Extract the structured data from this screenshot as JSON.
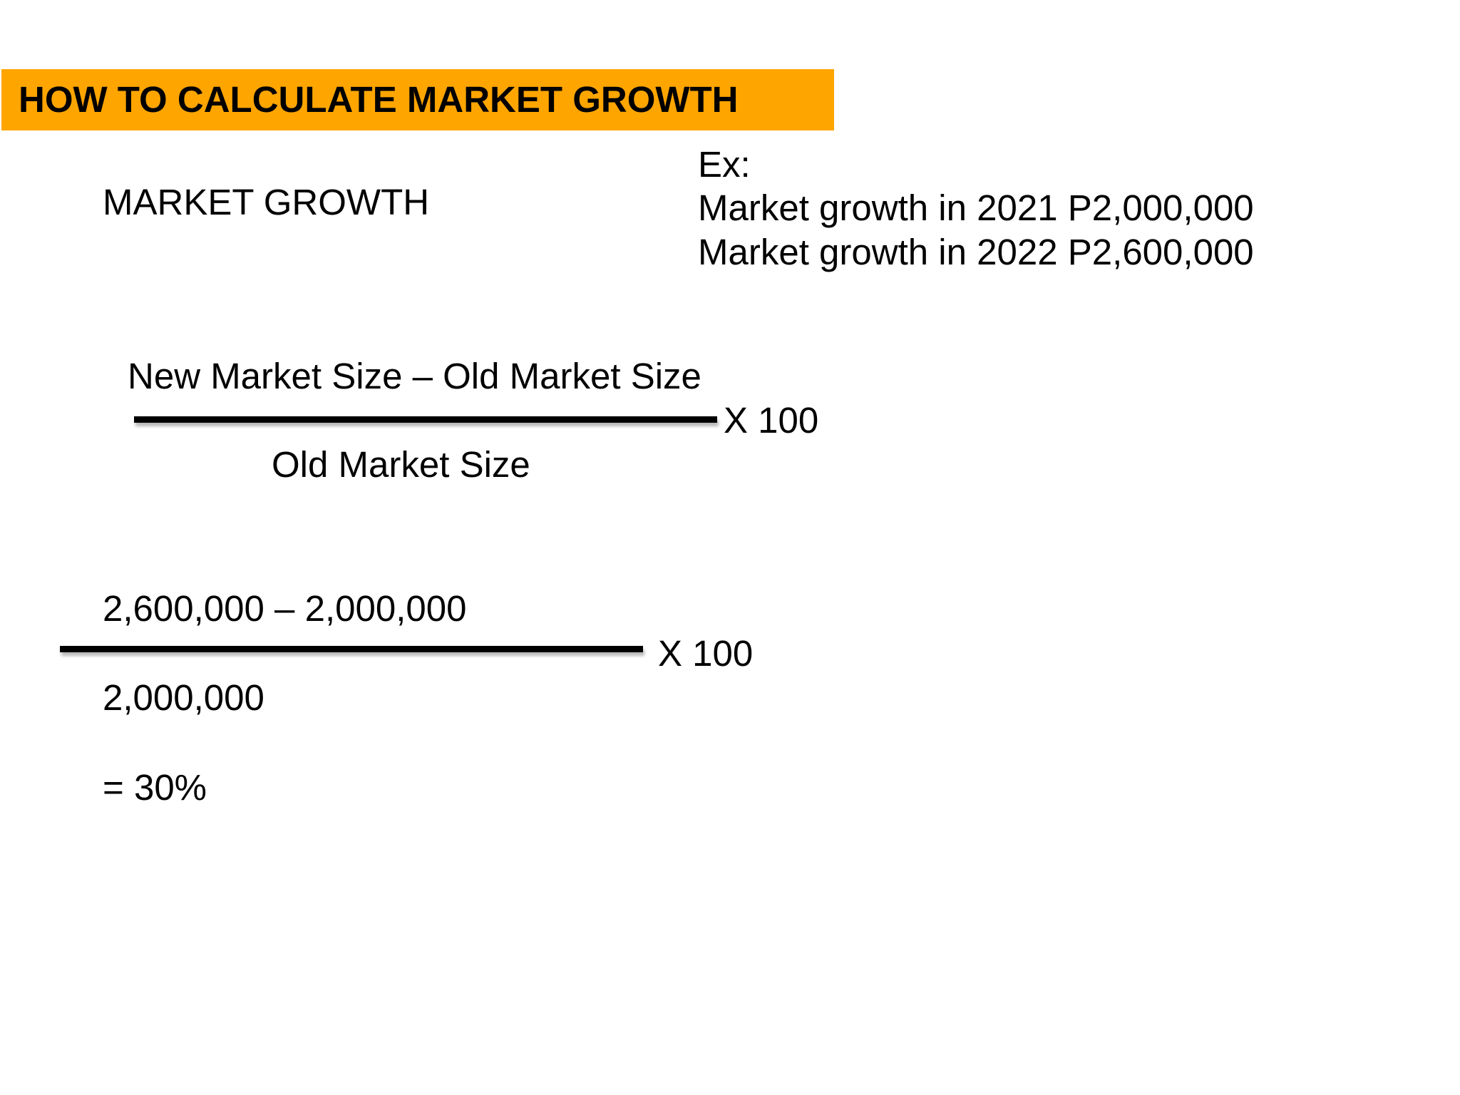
{
  "header": {
    "title": "HOW TO CALCULATE MARKET GROWTH",
    "bar_color": "#ffa500"
  },
  "subtitle": "MARKET GROWTH",
  "example": {
    "label": "Ex:",
    "lines": [
      "Market growth in 2021 P2,000,000",
      "Market growth in 2022 P2,600,000"
    ]
  },
  "formula": {
    "numerator": "New Market Size – Old Market Size",
    "denominator": "Old Market Size",
    "multiplier": "X 100"
  },
  "calculation": {
    "numerator": "2,600,000 – 2,000,000",
    "denominator": "2,000,000",
    "multiplier": "X 100",
    "result": "= 30%"
  }
}
